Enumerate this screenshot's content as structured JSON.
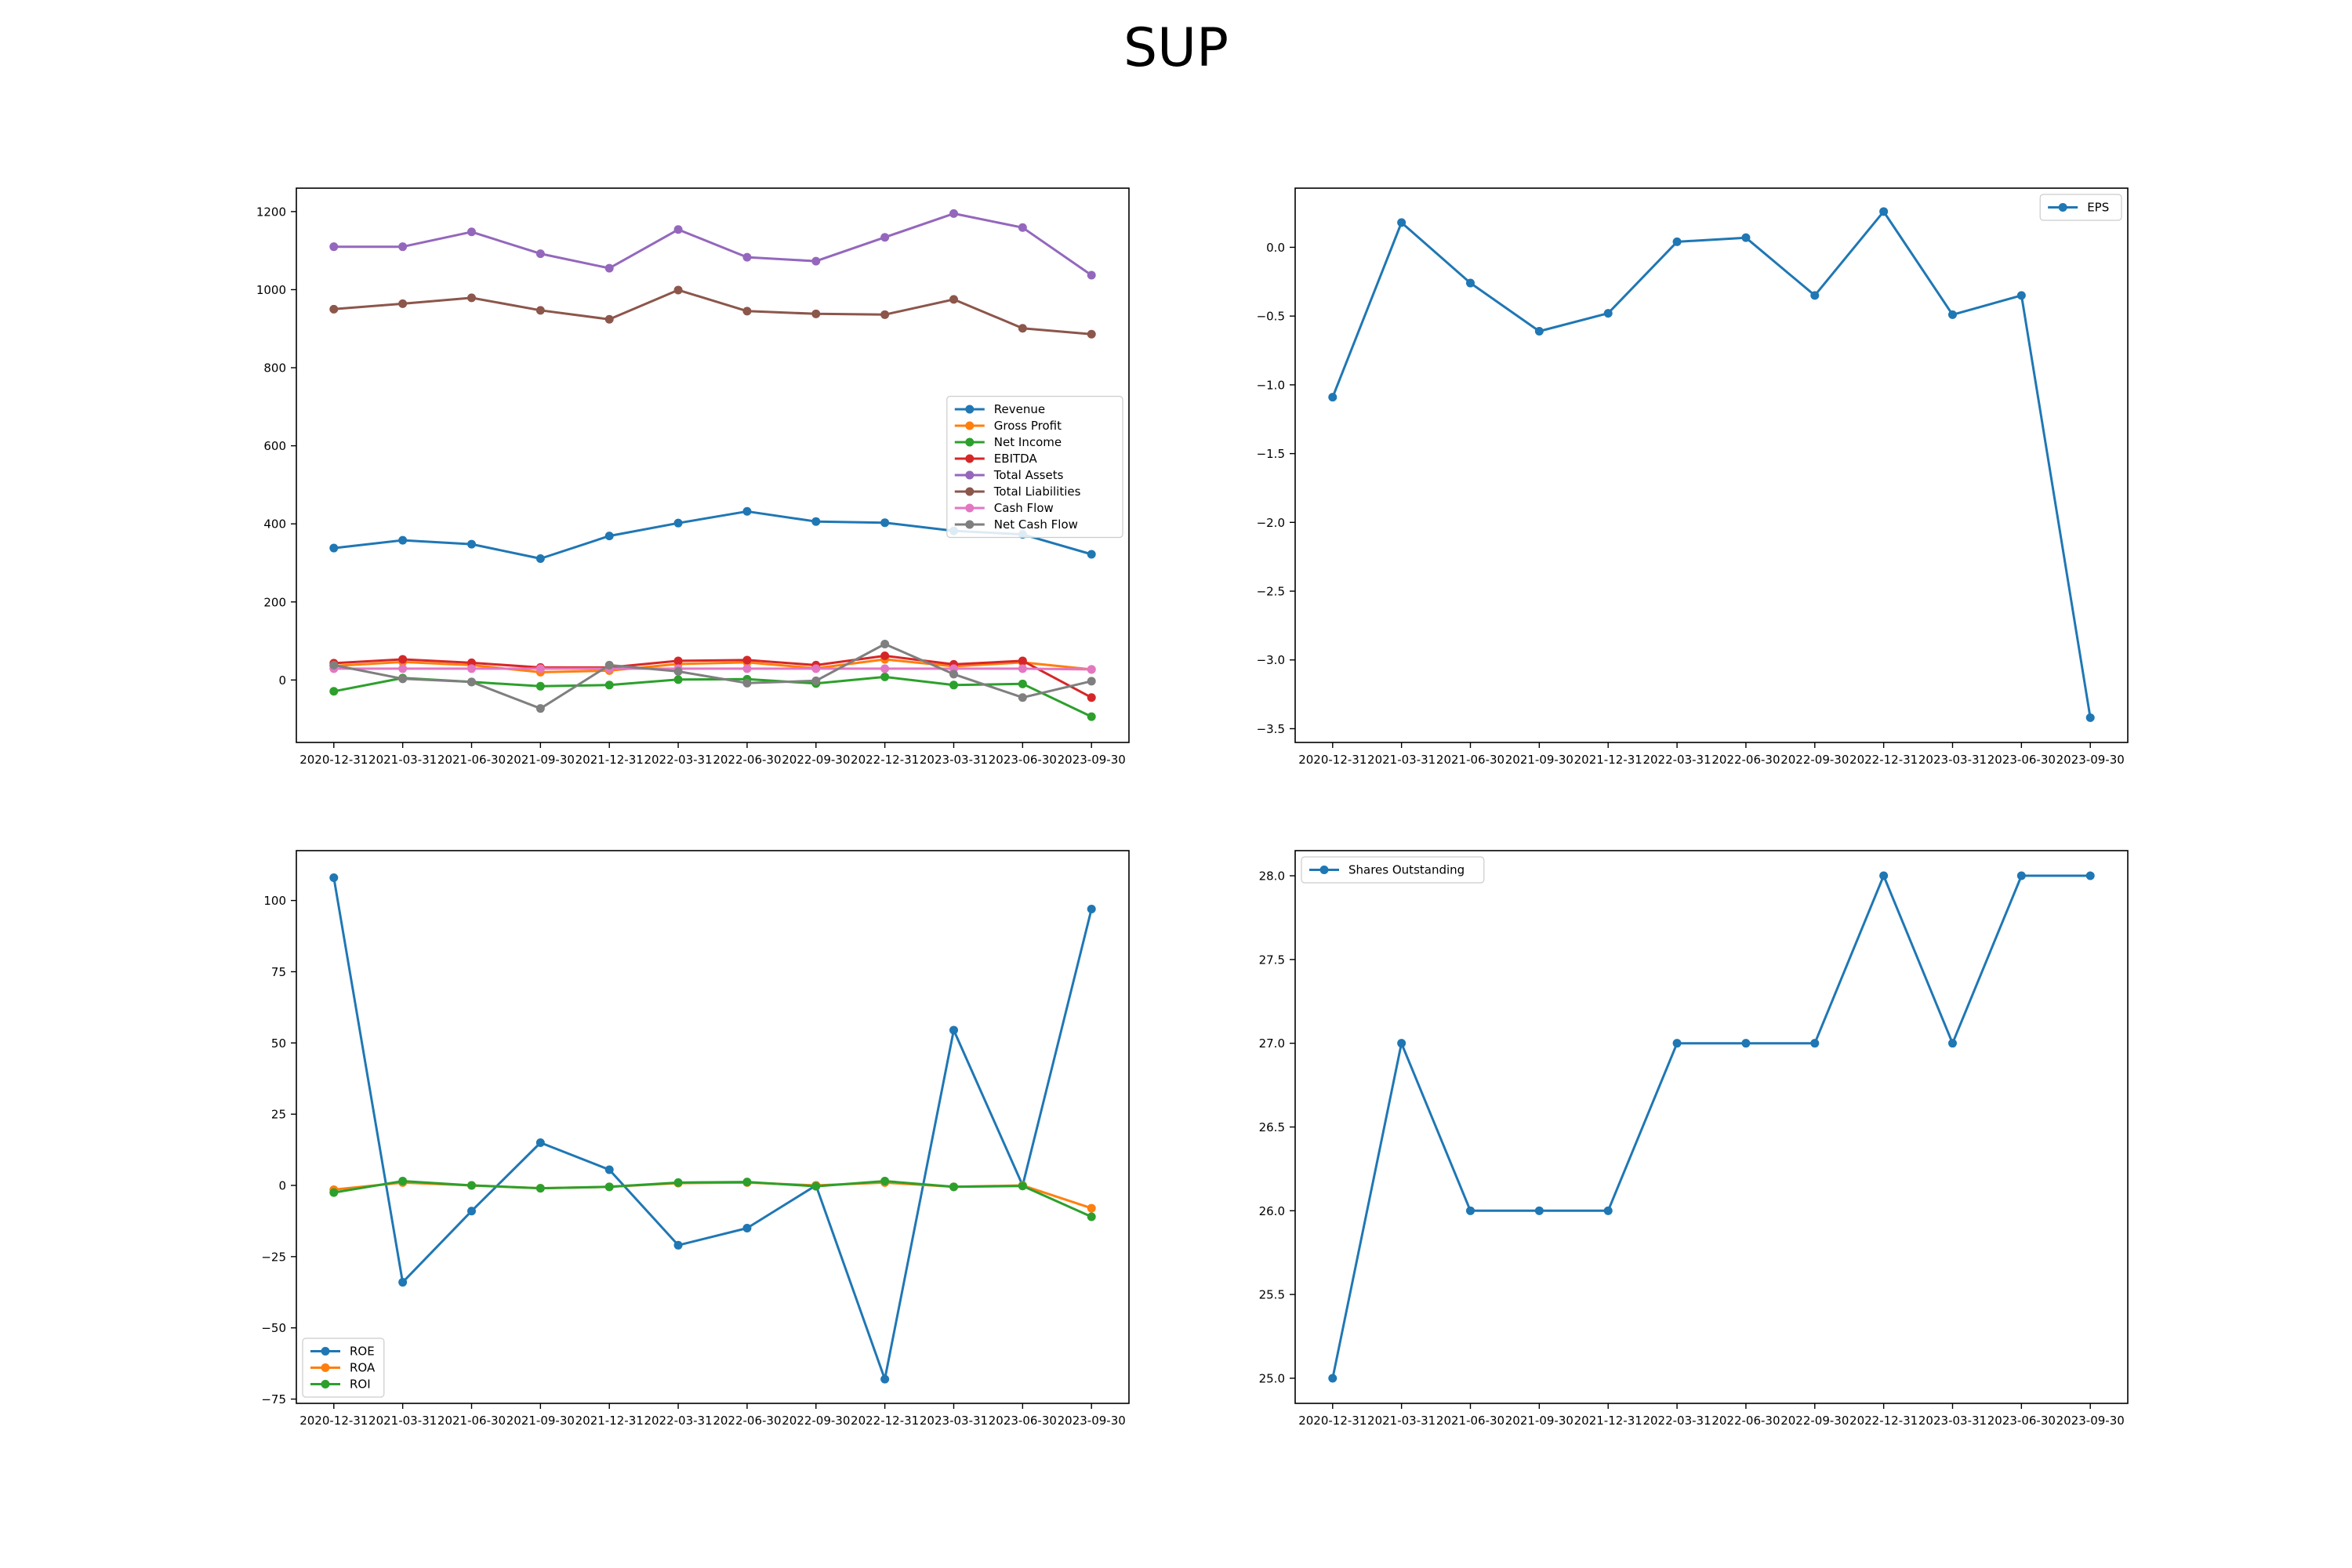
{
  "figure": {
    "title": "SUP"
  },
  "chart_data": [
    {
      "type": "line",
      "title": "",
      "xlabel": "",
      "ylabel": "",
      "x": [
        "2020-12-31",
        "2021-03-31",
        "2021-06-30",
        "2021-09-30",
        "2021-12-31",
        "2022-03-31",
        "2022-06-30",
        "2022-09-30",
        "2022-12-31",
        "2023-03-31",
        "2023-06-30",
        "2023-09-30"
      ],
      "ylim": [
        -160,
        1260
      ],
      "yticks": [
        0,
        200,
        400,
        600,
        800,
        1000,
        1200
      ],
      "legend_position": "center-right",
      "series": [
        {
          "name": "Revenue",
          "color": "#1f77b4",
          "values": [
            338,
            358,
            348,
            311,
            369,
            402,
            432,
            406,
            403,
            382,
            373,
            322
          ]
        },
        {
          "name": "Gross Profit",
          "color": "#ff7f0e",
          "values": [
            36,
            46,
            38,
            20,
            24,
            41,
            45,
            30,
            53,
            35,
            45,
            27
          ]
        },
        {
          "name": "Net Income",
          "color": "#2ca02c",
          "values": [
            -29,
            5,
            -5,
            -16,
            -13,
            1,
            2,
            -9,
            8,
            -13,
            -10,
            -94
          ]
        },
        {
          "name": "EBITDA",
          "color": "#d62728",
          "values": [
            43,
            53,
            44,
            32,
            32,
            49,
            51,
            38,
            62,
            40,
            49,
            -45
          ]
        },
        {
          "name": "Total Assets",
          "color": "#9467bd",
          "values": [
            1110,
            1110,
            1148,
            1092,
            1055,
            1154,
            1083,
            1073,
            1134,
            1195,
            1159,
            1037
          ]
        },
        {
          "name": "Total Liabilities",
          "color": "#8c564b",
          "values": [
            950,
            964,
            979,
            947,
            924,
            999,
            945,
            938,
            936,
            975,
            901,
            886
          ]
        },
        {
          "name": "Cash Flow",
          "color": "#e377c2",
          "values": [
            29,
            29,
            29,
            29,
            29,
            29,
            29,
            29,
            29,
            29,
            29,
            27
          ]
        },
        {
          "name": "Net Cash Flow",
          "color": "#7f7f7f",
          "values": [
            38,
            3,
            -5,
            -73,
            38,
            22,
            -8,
            -2,
            92,
            15,
            -45,
            -3
          ]
        }
      ]
    },
    {
      "type": "line",
      "title": "",
      "xlabel": "",
      "ylabel": "",
      "x": [
        "2020-12-31",
        "2021-03-31",
        "2021-06-30",
        "2021-09-30",
        "2021-12-31",
        "2022-03-31",
        "2022-06-30",
        "2022-09-30",
        "2022-12-31",
        "2023-03-31",
        "2023-06-30",
        "2023-09-30"
      ],
      "ylim": [
        -3.6,
        0.43
      ],
      "yticks": [
        0.0,
        -0.5,
        -1.0,
        -1.5,
        -2.0,
        -2.5,
        -3.0,
        -3.5
      ],
      "legend_position": "top-right",
      "series": [
        {
          "name": "EPS",
          "color": "#1f77b4",
          "values": [
            -1.09,
            0.18,
            -0.26,
            -0.61,
            -0.48,
            0.04,
            0.07,
            -0.35,
            0.26,
            -0.49,
            -0.35,
            -3.42
          ]
        }
      ]
    },
    {
      "type": "line",
      "title": "",
      "xlabel": "",
      "ylabel": "",
      "x": [
        "2020-12-31",
        "2021-03-31",
        "2021-06-30",
        "2021-09-30",
        "2021-12-31",
        "2022-03-31",
        "2022-06-30",
        "2022-09-30",
        "2022-12-31",
        "2023-03-31",
        "2023-06-30",
        "2023-09-30"
      ],
      "ylim": [
        -76.5,
        117.5
      ],
      "yticks": [
        100,
        75,
        50,
        25,
        0,
        -25,
        -50,
        -75
      ],
      "legend_position": "bottom-left",
      "series": [
        {
          "name": "ROE",
          "color": "#1f77b4",
          "values": [
            108,
            -34,
            -9,
            15,
            5.5,
            -21,
            -15,
            0,
            -68,
            54.5,
            0,
            97
          ]
        },
        {
          "name": "ROA",
          "color": "#ff7f0e",
          "values": [
            -1.5,
            1,
            0,
            -1,
            -0.5,
            0.8,
            1,
            0,
            1,
            -0.5,
            0,
            -8
          ]
        },
        {
          "name": "ROI",
          "color": "#2ca02c",
          "values": [
            -2.5,
            1.5,
            0,
            -1,
            -0.5,
            1,
            1.2,
            -0.3,
            1.5,
            -0.5,
            -0.2,
            -11
          ]
        }
      ]
    },
    {
      "type": "line",
      "title": "",
      "xlabel": "",
      "ylabel": "",
      "x": [
        "2020-12-31",
        "2021-03-31",
        "2021-06-30",
        "2021-09-30",
        "2021-12-31",
        "2022-03-31",
        "2022-06-30",
        "2022-09-30",
        "2022-12-31",
        "2023-03-31",
        "2023-06-30",
        "2023-09-30"
      ],
      "ylim": [
        24.85,
        28.15
      ],
      "yticks": [
        28.0,
        27.5,
        27.0,
        26.5,
        26.0,
        25.5,
        25.0
      ],
      "legend_position": "top-left",
      "series": [
        {
          "name": "Shares Outstanding",
          "color": "#1f77b4",
          "values": [
            25,
            27,
            26,
            26,
            26,
            27,
            27,
            27,
            28,
            27,
            28,
            28
          ]
        }
      ]
    }
  ]
}
